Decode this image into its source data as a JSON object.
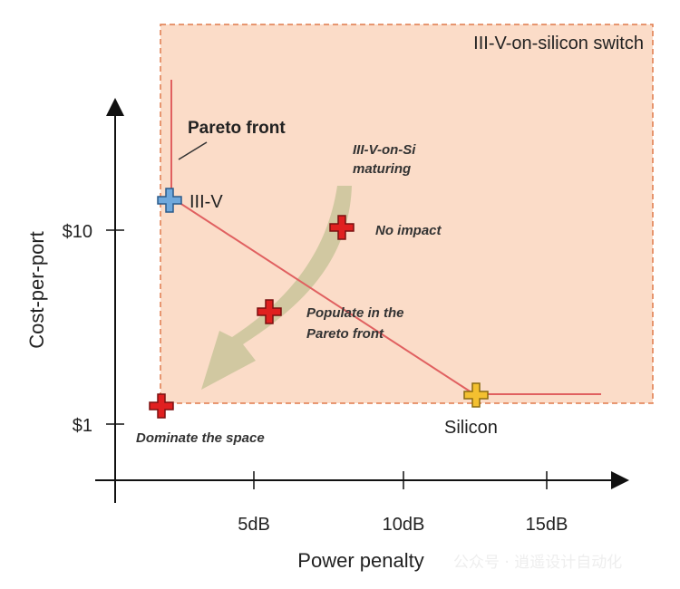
{
  "region_title": "III-V-on-silicon switch",
  "axes": {
    "ylabel": "Cost-per-port",
    "xlabel": "Power penalty",
    "y_ticks": [
      "$10",
      "$1"
    ],
    "x_ticks": [
      "5dB",
      "10dB",
      "15dB"
    ]
  },
  "labels": {
    "pareto_front": "Pareto front",
    "iii_v": "III-V",
    "silicon": "Silicon",
    "maturing_line1": "III-V-on-Si",
    "maturing_line2": "maturing",
    "no_impact": "No impact",
    "populate_line1": "Populate in the",
    "populate_line2": "Pareto front",
    "dominate": "Dominate the space"
  },
  "watermark": "公众号 · 逍遥设计自动化",
  "colors": {
    "region_fill": "#fbdcc8",
    "region_border": "#e07a4a",
    "pareto_line": "#e06060",
    "iii_v_marker": "#6fa8dc",
    "silicon_marker": "#f3c030",
    "scenario_marker": "#e02020",
    "arrow": "#c9c49a"
  }
}
